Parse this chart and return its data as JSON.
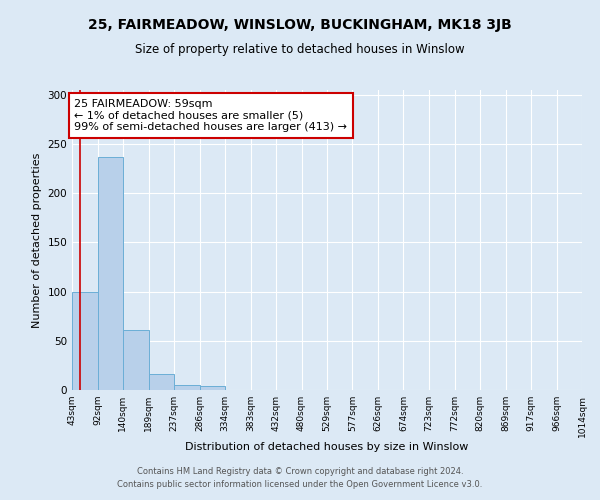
{
  "title": "25, FAIRMEADOW, WINSLOW, BUCKINGHAM, MK18 3JB",
  "subtitle": "Size of property relative to detached houses in Winslow",
  "xlabel": "Distribution of detached houses by size in Winslow",
  "ylabel": "Number of detached properties",
  "footer1": "Contains HM Land Registry data © Crown copyright and database right 2024.",
  "footer2": "Contains public sector information licensed under the Open Government Licence v3.0.",
  "annotation_line1": "25 FAIRMEADOW: 59sqm",
  "annotation_line2": "← 1% of detached houses are smaller (5)",
  "annotation_line3": "99% of semi-detached houses are larger (413) →",
  "bin_edges": [
    43,
    92,
    140,
    189,
    237,
    286,
    334,
    383,
    432,
    480,
    529,
    577,
    626,
    674,
    723,
    772,
    820,
    869,
    917,
    966,
    1014
  ],
  "bar_heights": [
    100,
    237,
    61,
    16,
    5,
    4,
    0,
    0,
    0,
    0,
    0,
    0,
    0,
    0,
    0,
    0,
    0,
    0,
    0,
    0
  ],
  "bar_color": "#b8d0ea",
  "bar_edge_color": "#6baed6",
  "ylim": [
    0,
    305
  ],
  "yticks": [
    0,
    50,
    100,
    150,
    200,
    250,
    300
  ],
  "property_size": 59,
  "red_line_color": "#cc0000",
  "background_color": "#dce9f5",
  "plot_bg_color": "#dce9f5",
  "grid_color": "#ffffff",
  "title_fontsize": 10,
  "subtitle_fontsize": 8.5,
  "xlabel_fontsize": 8,
  "ylabel_fontsize": 8,
  "tick_fontsize": 6.5,
  "annotation_fontsize": 8,
  "footer_fontsize": 6
}
